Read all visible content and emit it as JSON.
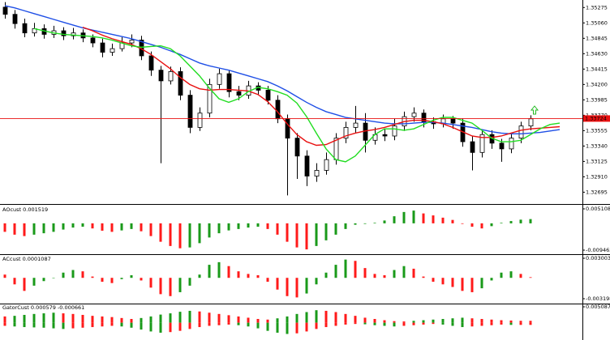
{
  "chart_data": [
    {
      "type": "candlestick",
      "open": [
        1.3528,
        1.3518,
        1.3505,
        1.3492,
        1.3498,
        1.349,
        1.3495,
        1.3488,
        1.3492,
        1.3485,
        1.3478,
        1.3465,
        1.347,
        1.3478,
        1.3482,
        1.346,
        1.344,
        1.3425,
        1.3438,
        1.3405,
        1.336,
        1.338,
        1.342,
        1.3435,
        1.341,
        1.3405,
        1.3418,
        1.3412,
        1.3398,
        1.3372,
        1.3345,
        1.332,
        1.3292,
        1.33,
        1.3315,
        1.3345,
        1.336,
        1.3366,
        1.3342,
        1.335,
        1.3348,
        1.3362,
        1.3375,
        1.338,
        1.3368,
        1.3365,
        1.3372,
        1.3366,
        1.334,
        1.3325,
        1.335,
        1.3338,
        1.333,
        1.3345,
        1.3362,
        null,
        null,
        null
      ],
      "high": [
        1.3535,
        1.3524,
        1.3512,
        1.3506,
        1.3504,
        1.3502,
        1.35,
        1.3499,
        1.3497,
        1.349,
        1.3484,
        1.3477,
        1.3486,
        1.349,
        1.3488,
        1.3466,
        1.3446,
        1.3445,
        1.3444,
        1.3412,
        1.3388,
        1.3428,
        1.3442,
        1.344,
        1.3418,
        1.3425,
        1.3423,
        1.3418,
        1.3405,
        1.3378,
        1.3352,
        1.3328,
        1.331,
        1.3325,
        1.3352,
        1.3368,
        1.339,
        1.338,
        1.336,
        1.3358,
        1.3372,
        1.3382,
        1.3388,
        1.3385,
        1.3374,
        1.3378,
        1.3376,
        1.3372,
        1.3348,
        1.3357,
        1.3356,
        1.3344,
        1.3352,
        1.3368,
        1.3377,
        null,
        null,
        null
      ],
      "low": [
        1.3512,
        1.3498,
        1.3486,
        1.3487,
        1.3484,
        1.3485,
        1.3482,
        1.3483,
        1.3479,
        1.3472,
        1.3458,
        1.346,
        1.3466,
        1.3472,
        1.3454,
        1.3432,
        1.331,
        1.342,
        1.3398,
        1.3352,
        1.3355,
        1.3374,
        1.3414,
        1.3402,
        1.3398,
        1.34,
        1.3405,
        1.3392,
        1.3366,
        1.3265,
        1.3288,
        1.3278,
        1.3284,
        1.3294,
        1.3308,
        1.3338,
        1.3352,
        1.3325,
        1.3336,
        1.3341,
        1.3342,
        1.3355,
        1.3368,
        1.336,
        1.3358,
        1.336,
        1.3358,
        1.3333,
        1.33,
        1.3318,
        1.333,
        1.3312,
        1.3324,
        1.3338,
        1.3356,
        null,
        null,
        null
      ],
      "close": [
        1.3518,
        1.3505,
        1.3492,
        1.3498,
        1.349,
        1.3495,
        1.3488,
        1.3492,
        1.3485,
        1.3478,
        1.3465,
        1.347,
        1.3478,
        1.3482,
        1.346,
        1.344,
        1.3425,
        1.3438,
        1.3405,
        1.336,
        1.338,
        1.342,
        1.3435,
        1.341,
        1.3405,
        1.3418,
        1.3412,
        1.3398,
        1.3372,
        1.3345,
        1.332,
        1.3292,
        1.33,
        1.3315,
        1.3345,
        1.336,
        1.3366,
        1.3342,
        1.335,
        1.3348,
        1.3362,
        1.3375,
        1.338,
        1.3368,
        1.3365,
        1.3372,
        1.3366,
        1.334,
        1.3325,
        1.335,
        1.3338,
        1.333,
        1.3345,
        1.3362,
        1.3372,
        null,
        null,
        null
      ],
      "up_color": "#ffffff",
      "down_color": "#000000",
      "series": [
        {
          "color": "#1f4fe6",
          "values": [
            1.353,
            1.3527,
            1.3523,
            1.3519,
            1.3515,
            1.3511,
            1.3507,
            1.3503,
            1.3499,
            1.3496,
            1.3493,
            1.349,
            1.3487,
            1.3484,
            1.348,
            1.3476,
            1.3472,
            1.3467,
            1.3462,
            1.3456,
            1.345,
            1.3446,
            1.3443,
            1.344,
            1.3436,
            1.3432,
            1.3428,
            1.3424,
            1.3418,
            1.3411,
            1.3403,
            1.3395,
            1.3388,
            1.3382,
            1.3378,
            1.3374,
            1.3372,
            1.337,
            1.3368,
            1.3366,
            1.3365,
            1.3365,
            1.3366,
            1.3367,
            1.3367,
            1.3366,
            1.3364,
            1.3362,
            1.336,
            1.3357,
            1.3354,
            1.3352,
            1.3351,
            1.3351,
            1.3352,
            1.3353,
            1.3355,
            1.3357
          ]
        },
        {
          "color": "#e81010",
          "values": [
            null,
            null,
            null,
            null,
            null,
            null,
            null,
            null,
            1.35,
            1.3495,
            1.3489,
            1.3484,
            1.348,
            1.3476,
            1.347,
            1.3462,
            1.3452,
            1.3442,
            1.343,
            1.342,
            1.3414,
            1.3412,
            1.3413,
            1.3413,
            1.3412,
            1.3411,
            1.3406,
            1.3396,
            1.3382,
            1.3365,
            1.335,
            1.334,
            1.3335,
            1.3336,
            1.3342,
            1.3348,
            1.3352,
            1.3355,
            1.3357,
            1.336,
            1.3364,
            1.3368,
            1.337,
            1.337,
            1.3368,
            1.3365,
            1.336,
            1.3354,
            1.3348,
            1.3346,
            1.3346,
            1.3348,
            1.3352,
            1.3356,
            1.3358,
            1.3359,
            1.336,
            1.3361
          ]
        },
        {
          "color": "#22dd22",
          "values": [
            null,
            null,
            null,
            1.3498,
            1.3495,
            1.3492,
            1.349,
            1.3489,
            1.3488,
            1.3487,
            1.3485,
            1.3482,
            1.3478,
            1.3474,
            1.3472,
            1.3473,
            1.3474,
            1.347,
            1.346,
            1.3446,
            1.3432,
            1.3415,
            1.34,
            1.3395,
            1.34,
            1.341,
            1.3416,
            1.3414,
            1.341,
            1.3405,
            1.3394,
            1.3375,
            1.3352,
            1.333,
            1.3315,
            1.3312,
            1.332,
            1.3335,
            1.335,
            1.3358,
            1.3358,
            1.3356,
            1.3358,
            1.3364,
            1.337,
            1.3374,
            1.3374,
            1.337,
            1.3366,
            1.3356,
            1.3345,
            1.334,
            1.334,
            1.3342,
            1.335,
            1.3358,
            1.3364,
            1.3366
          ]
        }
      ],
      "current_price": 1.33724,
      "current_price_color": "#e81010",
      "ylim": [
        1.3253,
        1.3538
      ],
      "yticks": [
        1.35275,
        {
          "value": 1.3506,
          "label": "1.35060"
        },
        1.34845,
        {
          "value": 1.3463,
          "label": "1.34630"
        },
        1.34415,
        {
          "value": 1.342,
          "label": "1.34200"
        },
        1.33985,
        {
          "value": 1.3377,
          "label": "1.33770"
        },
        1.33555,
        {
          "value": 1.3334,
          "label": "1.33340"
        },
        1.33125,
        {
          "value": 1.3291,
          "label": "1.32910"
        },
        1.32695
      ]
    },
    {
      "type": "bar",
      "title": "AOcust 0.001519",
      "up_color": "#1a9a1a",
      "down_color": "#ff1a1a",
      "series": [
        {
          "values": [
            -0.003,
            -0.004,
            -0.0045,
            -0.004,
            -0.0035,
            -0.003,
            -0.0022,
            -0.0015,
            -0.0012,
            -0.0018,
            -0.0026,
            -0.003,
            -0.0025,
            -0.002,
            -0.0028,
            -0.0045,
            -0.0065,
            -0.008,
            -0.0088,
            -0.0085,
            -0.007,
            -0.005,
            -0.0035,
            -0.0025,
            -0.002,
            -0.0015,
            -0.0012,
            -0.002,
            -0.004,
            -0.0065,
            -0.0085,
            -0.0092,
            -0.008,
            -0.006,
            -0.004,
            -0.002,
            -0.0005,
            -0.0002,
            0.0002,
            0.001,
            0.0025,
            0.004,
            0.0045,
            0.0035,
            0.0028,
            0.002,
            0.0012,
            -0.0002,
            -0.0012,
            -0.0018,
            -0.001,
            0.0002,
            0.0008,
            0.0013,
            0.0015
          ]
        }
      ],
      "ylim": [
        -0.009463,
        0.005108
      ],
      "yticks": [
        0.005108,
        -0.009463
      ]
    },
    {
      "type": "bar",
      "title": "ACcust 0.0001087",
      "up_color": "#1a9a1a",
      "down_color": "#ff1a1a",
      "series": [
        {
          "values": [
            0.0005,
            -0.001,
            -0.002,
            -0.0012,
            -0.0005,
            0,
            0.0008,
            0.0012,
            0.001,
            0.0002,
            -0.0006,
            -0.0008,
            -0.0002,
            0.0004,
            -0.0004,
            -0.0015,
            -0.0025,
            -0.0028,
            -0.0022,
            -0.0012,
            0.0005,
            0.002,
            0.0024,
            0.0018,
            0.001,
            0.0006,
            0.0004,
            -0.0006,
            -0.0018,
            -0.0028,
            -0.003,
            -0.0024,
            -0.001,
            0.0008,
            0.002,
            0.0028,
            0.0026,
            0.0015,
            0.0006,
            0.0004,
            0.0012,
            0.0018,
            0.0014,
            0.0002,
            -0.0006,
            -0.001,
            -0.0014,
            -0.002,
            -0.0022,
            -0.0016,
            -0.0004,
            0.0008,
            0.001,
            0.0006,
            0.0001
          ]
        }
      ],
      "ylim": [
        -0.0031988,
        0.0030039
      ],
      "yticks": [
        0.0030039,
        -0.0031988
      ]
    },
    {
      "type": "bar",
      "title": "GatorCust 0.000579 -0.000661",
      "up_color": "#1a9a1a",
      "down_color": "#ff1a1a",
      "series": [
        {
          "values": [
            0.002,
            0.0022,
            0.0025,
            0.0028,
            0.003,
            0.0032,
            0.003,
            0.0028,
            0.0025,
            0.0022,
            0.002,
            0.0018,
            0.0015,
            0.0012,
            0.0015,
            0.002,
            0.0026,
            0.003,
            0.0035,
            0.0038,
            0.0036,
            0.0032,
            0.0028,
            0.0024,
            0.002,
            0.0016,
            0.0012,
            0.001,
            0.0014,
            0.002,
            0.0028,
            0.0034,
            0.004,
            0.0038,
            0.0034,
            0.0028,
            0.0022,
            0.0016,
            0.0012,
            0.0008,
            0.0005,
            0.0004,
            0.0006,
            0.0008,
            0.001,
            0.0012,
            0.0014,
            0.0016,
            0.0014,
            0.0012,
            0.001,
            0.0008,
            0.0007,
            0.0006,
            0.0006
          ]
        },
        {
          "values": [
            -0.001,
            -0.0012,
            -0.0014,
            -0.0015,
            -0.0016,
            -0.0018,
            -0.002,
            -0.0018,
            -0.0016,
            -0.0014,
            -0.0012,
            -0.001,
            -0.0012,
            -0.0016,
            -0.0022,
            -0.0028,
            -0.0032,
            -0.003,
            -0.0026,
            -0.002,
            -0.0014,
            -0.001,
            -0.0008,
            -0.0006,
            -0.0008,
            -0.0012,
            -0.0018,
            -0.0026,
            -0.0032,
            -0.0036,
            -0.0034,
            -0.0028,
            -0.002,
            -0.0014,
            -0.001,
            -0.0006,
            -0.0004,
            -0.0005,
            -0.0008,
            -0.001,
            -0.0012,
            -0.001,
            -0.0008,
            -0.0006,
            -0.0004,
            -0.0006,
            -0.001,
            -0.0014,
            -0.0012,
            -0.001,
            -0.0008,
            -0.0006,
            -0.0007,
            -0.0007,
            -0.0007
          ]
        }
      ],
      "ylim": [
        -0.0045,
        0.005087
      ],
      "yticks": [
        0.005087
      ]
    }
  ]
}
